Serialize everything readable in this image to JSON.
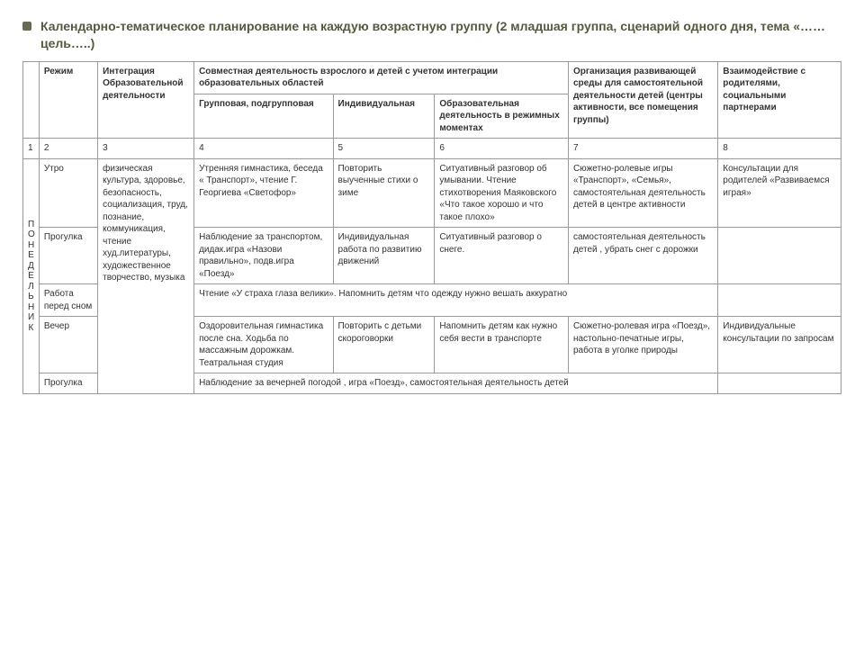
{
  "title": "Календарно-тематическое планирование на каждую возрастную группу (2 младшая группа, сценарий одного дня, тема «……цель…..)",
  "headers": {
    "c2": "Режим",
    "c3": "Интеграция Образовательной деятельности",
    "joint": "Совместная деятельность взрослого и детей с учетом интеграции образовательных областей",
    "c4": "Групповая, подгрупповая",
    "c5": "Индивидуальная",
    "c6": "Образовательная деятельность в режимных моментах",
    "c7": "Организация развивающей среды для самостоятельной деятельности детей (центры активности, все помещения группы)",
    "c8": "Взаимодействие с родителями, социальными партнерами"
  },
  "numrow": [
    "1",
    "2",
    "3",
    "4",
    "5",
    "6",
    "7",
    "8"
  ],
  "day_vertical": "П\nО\nН\nЕ\nД\nЕ\nЛ\nЬ\nН\nИ\nК",
  "integration": "физическая культура, здоровье, безопасность, социализация, труд, познание, коммуникация, чтение худ.литературы, художественное творчество, музыка",
  "rows": {
    "morning": {
      "regime": "Утро",
      "c4": "Утренняя гимнастика, беседа « Транспорт», чтение Г. Георгиева «Светофор»",
      "c5": "Повторить выученные стихи о зиме",
      "c6": "Ситуативный разговор об умывании. Чтение стихотворения Маяковского «Что такое хорошо и что такое плохо»",
      "c7": "Сюжетно-ролевые игры «Транспорт», «Семья», самостоятельная деятельность детей в центре активности",
      "c8": "Консультации для родителей «Развиваемся играя»"
    },
    "walk1": {
      "regime": "Прогулка",
      "c4": "Наблюдение за транспортом, дидак.игра «Назови правильно», подв.игра «Поезд»",
      "c5": "Индивидуальная работа по развитию движений",
      "c6": "Ситуативный разговор о снеге.",
      "c7": "самостоятельная деятельность детей , убрать снег с дорожки",
      "c8": ""
    },
    "presleep": {
      "regime": "Работа перед сном",
      "merged": "Чтение «У страха глаза велики». Напомнить детям что одежду нужно вешать аккуратно",
      "c8": ""
    },
    "evening": {
      "regime": "Вечер",
      "c4": "Оздоровительная гимнастика после сна. Ходьба по массажным дорожкам. Театральная студия",
      "c5": "Повторить с детьми скороговорки",
      "c6": "Напомнить детям как нужно себя вести в транспорте",
      "c7": "Сюжетно-ролевая игра «Поезд», настольно-печатные игры, работа в уголке природы",
      "c8": "Индивидуальные консультации по запросам"
    },
    "walk2": {
      "regime": "Прогулка",
      "merged": "Наблюдение за вечерней погодой , игра «Поезд», самостоятельная деятельность детей",
      "c8": ""
    }
  }
}
